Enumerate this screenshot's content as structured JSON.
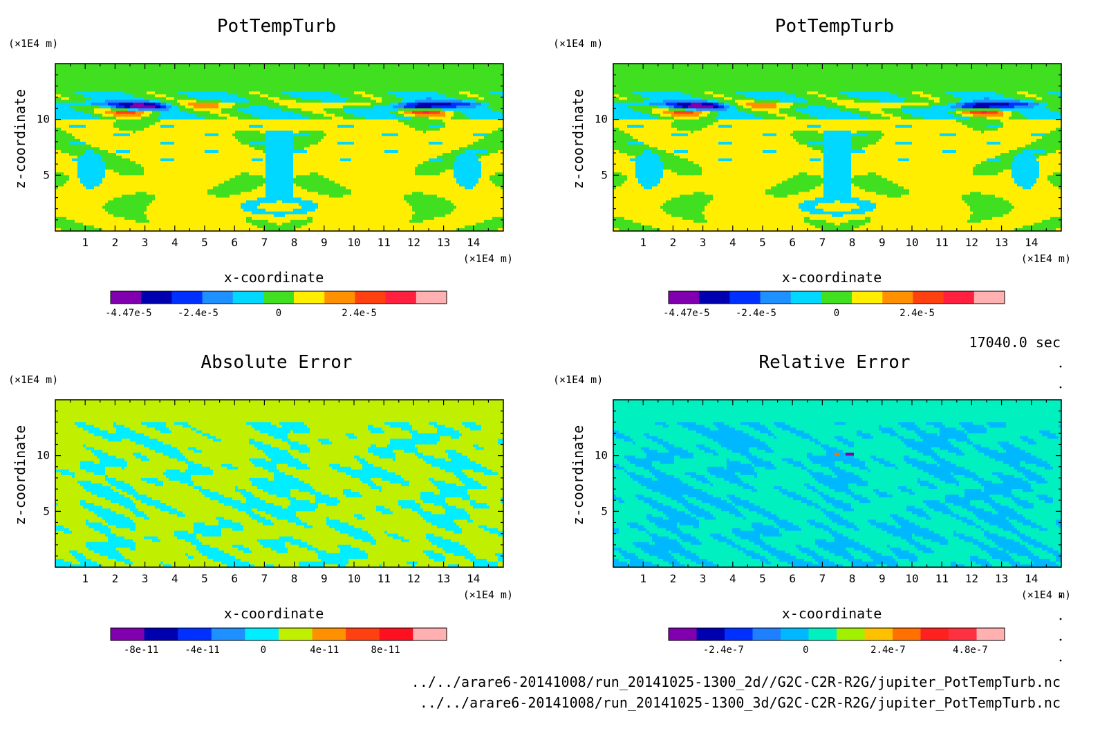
{
  "chart_data": [
    {
      "type": "heatmap",
      "title": "PotTempTurb",
      "xlabel": "x-coordinate",
      "ylabel": "z-coordinate",
      "x_unit": "(×1E4 m)",
      "y_unit": "(×1E4 m)",
      "xlim": [
        0,
        15
      ],
      "ylim": [
        0,
        15
      ],
      "x_ticks": [
        "1",
        "2",
        "3",
        "4",
        "5",
        "6",
        "7",
        "8",
        "9",
        "10",
        "11",
        "12",
        "13",
        "14"
      ],
      "y_ticks": [
        "5",
        "10"
      ],
      "field": "pottemp",
      "colorbar": {
        "colors": [
          "#8000b0",
          "#0000b0",
          "#0030ff",
          "#1e90ff",
          "#00d8ff",
          "#40e020",
          "#ffee00",
          "#ff9000",
          "#ff4010",
          "#ff2040",
          "#ffb0b0"
        ],
        "tick_labels": [
          "-4.47e-5",
          "-2.4e-5",
          "0",
          "2.4e-5"
        ],
        "tick_values": [
          -4.47e-05,
          -2.4e-05,
          0,
          2.4e-05
        ],
        "range": [
          -5e-05,
          5e-05
        ]
      }
    },
    {
      "type": "heatmap",
      "title": "PotTempTurb",
      "xlabel": "x-coordinate",
      "ylabel": "z-coordinate",
      "x_unit": "(×1E4 m)",
      "y_unit": "(×1E4 m)",
      "xlim": [
        0,
        15
      ],
      "ylim": [
        0,
        15
      ],
      "x_ticks": [
        "1",
        "2",
        "3",
        "4",
        "5",
        "6",
        "7",
        "8",
        "9",
        "10",
        "11",
        "12",
        "13",
        "14"
      ],
      "y_ticks": [
        "5",
        "10"
      ],
      "field": "pottemp",
      "colorbar": {
        "colors": [
          "#8000b0",
          "#0000b0",
          "#0030ff",
          "#1e90ff",
          "#00d8ff",
          "#40e020",
          "#ffee00",
          "#ff9000",
          "#ff4010",
          "#ff2040",
          "#ffb0b0"
        ],
        "tick_labels": [
          "-4.47e-5",
          "-2.4e-5",
          "0",
          "2.4e-5"
        ],
        "tick_values": [
          -4.47e-05,
          -2.4e-05,
          0,
          2.4e-05
        ],
        "range": [
          -5e-05,
          5e-05
        ]
      }
    },
    {
      "type": "heatmap",
      "title": "Absolute Error",
      "xlabel": "x-coordinate",
      "ylabel": "z-coordinate",
      "x_unit": "(×1E4 m)",
      "y_unit": "(×1E4 m)",
      "xlim": [
        0,
        15
      ],
      "ylim": [
        0,
        15
      ],
      "x_ticks": [
        "1",
        "2",
        "3",
        "4",
        "5",
        "6",
        "7",
        "8",
        "9",
        "10",
        "11",
        "12",
        "13",
        "14"
      ],
      "y_ticks": [
        "5",
        "10"
      ],
      "field": "abserr",
      "colorbar": {
        "colors": [
          "#8000b0",
          "#0000b0",
          "#0030ff",
          "#1e90ff",
          "#00eeff",
          "#c0f000",
          "#ff9000",
          "#ff4010",
          "#ff1020",
          "#ffb0b0"
        ],
        "tick_labels": [
          "-8e-11",
          "-4e-11",
          "0",
          "4e-11",
          "8e-11"
        ],
        "tick_values": [
          -8e-11,
          -4e-11,
          0,
          4e-11,
          8e-11
        ],
        "range": [
          -1e-10,
          1.2e-10
        ]
      }
    },
    {
      "type": "heatmap",
      "title": "Relative Error",
      "xlabel": "x-coordinate",
      "ylabel": "z-coordinate",
      "x_unit": "(×1E4 m)",
      "y_unit": "(×1E4 m)",
      "xlim": [
        0,
        15
      ],
      "ylim": [
        0,
        15
      ],
      "x_ticks": [
        "1",
        "2",
        "3",
        "4",
        "5",
        "6",
        "7",
        "8",
        "9",
        "10",
        "11",
        "12",
        "13",
        "14"
      ],
      "y_ticks": [
        "5",
        "10"
      ],
      "field": "relerr",
      "colorbar": {
        "colors": [
          "#8000b0",
          "#0000b0",
          "#0030ff",
          "#1e7fff",
          "#00b8ff",
          "#00f0c0",
          "#a0f000",
          "#ffc000",
          "#ff7000",
          "#ff2020",
          "#ff3040",
          "#ffb0b0"
        ],
        "tick_labels": [
          "-2.4e-7",
          "0",
          "2.4e-7",
          "4.8e-7"
        ],
        "tick_values": [
          -2.4e-07,
          0,
          2.4e-07,
          4.8e-07
        ],
        "range": [
          -4e-07,
          5.8e-07
        ]
      }
    }
  ],
  "time_label": "17040.0 sec",
  "footer_lines": [
    "../../arare6-20141008/run_20141025-1300_2d//G2C-C2R-R2G/jupiter_PotTempTurb.nc",
    "../../arare6-20141008/run_20141025-1300_3d/G2C-C2R-R2G/jupiter_PotTempTurb.nc"
  ]
}
